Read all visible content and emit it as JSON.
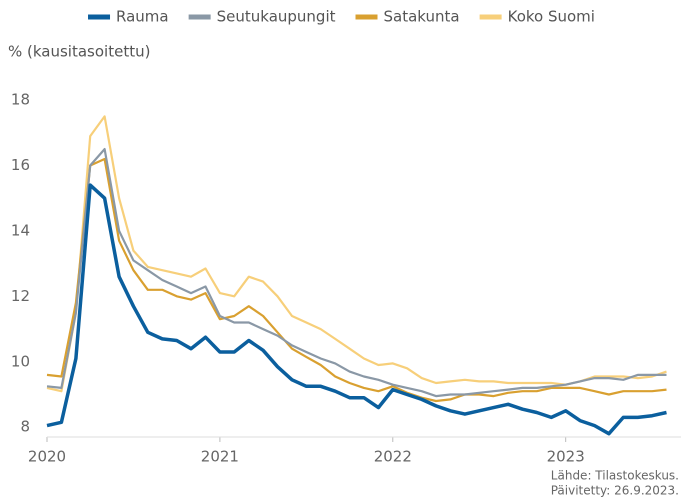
{
  "chart_data": {
    "type": "line",
    "y_axis_label": "% (kausitasoitettu)",
    "source_lines": [
      "Lähde: Tilastokeskus.",
      "Päivitetty: 26.9.2023."
    ],
    "legend": "top",
    "grid": false,
    "x": [
      2020,
      2020.083,
      2020.167,
      2020.25,
      2020.333,
      2020.417,
      2020.5,
      2020.583,
      2020.667,
      2020.75,
      2020.833,
      2020.917,
      2021,
      2021.083,
      2021.167,
      2021.25,
      2021.333,
      2021.417,
      2021.5,
      2021.583,
      2021.667,
      2021.75,
      2021.833,
      2021.917,
      2022,
      2022.083,
      2022.167,
      2022.25,
      2022.333,
      2022.417,
      2022.5,
      2022.583,
      2022.667,
      2022.75,
      2022.833,
      2022.917,
      2023,
      2023.083,
      2023.167,
      2023.25,
      2023.333,
      2023.417,
      2023.5,
      2023.583
    ],
    "xlim": [
      2020,
      2023.667
    ],
    "xticks": [
      2020,
      2021,
      2022,
      2023
    ],
    "ylim": [
      7.7,
      18.4
    ],
    "yticks": [
      8,
      10,
      12,
      14,
      16,
      18
    ],
    "series": [
      {
        "name": "Rauma",
        "color": "#0b5f9e",
        "values": [
          8.05,
          8.15,
          10.1,
          15.4,
          15.0,
          12.6,
          11.7,
          10.9,
          10.7,
          10.65,
          10.4,
          10.75,
          10.3,
          10.3,
          10.65,
          10.35,
          9.85,
          9.45,
          9.25,
          9.25,
          9.1,
          8.9,
          8.9,
          8.6,
          9.15,
          9.0,
          8.85,
          8.65,
          8.5,
          8.4,
          8.5,
          8.6,
          8.7,
          8.55,
          8.45,
          8.3,
          8.5,
          8.2,
          8.05,
          7.8,
          8.3,
          8.3,
          8.35,
          8.45
        ]
      },
      {
        "name": "Seutukaupungit",
        "color": "#8a98a6",
        "values": [
          9.25,
          9.2,
          11.5,
          16.0,
          16.5,
          14.0,
          13.1,
          12.8,
          12.5,
          12.3,
          12.1,
          12.3,
          11.4,
          11.2,
          11.2,
          11.0,
          10.8,
          10.5,
          10.3,
          10.1,
          9.95,
          9.7,
          9.55,
          9.45,
          9.3,
          9.2,
          9.1,
          8.95,
          9.0,
          9.0,
          9.05,
          9.1,
          9.15,
          9.2,
          9.2,
          9.25,
          9.3,
          9.4,
          9.5,
          9.5,
          9.45,
          9.6,
          9.6,
          9.6
        ]
      },
      {
        "name": "Satakunta",
        "color": "#d9a030",
        "values": [
          9.6,
          9.55,
          11.8,
          16.0,
          16.2,
          13.7,
          12.8,
          12.2,
          12.2,
          12.0,
          11.9,
          12.1,
          11.3,
          11.4,
          11.7,
          11.4,
          10.9,
          10.4,
          10.15,
          9.9,
          9.55,
          9.35,
          9.2,
          9.1,
          9.25,
          9.05,
          8.9,
          8.8,
          8.85,
          9.0,
          9.0,
          8.95,
          9.05,
          9.1,
          9.1,
          9.2,
          9.2,
          9.2,
          9.1,
          9.0,
          9.1,
          9.1,
          9.1,
          9.15
        ]
      },
      {
        "name": "Koko Suomi",
        "color": "#f7cf7a",
        "values": [
          9.2,
          9.1,
          11.5,
          16.9,
          17.5,
          15.0,
          13.4,
          12.9,
          12.8,
          12.7,
          12.6,
          12.85,
          12.1,
          12.0,
          12.6,
          12.45,
          12.0,
          11.4,
          11.2,
          11.0,
          10.7,
          10.4,
          10.1,
          9.9,
          9.95,
          9.8,
          9.5,
          9.35,
          9.4,
          9.45,
          9.4,
          9.4,
          9.35,
          9.35,
          9.35,
          9.35,
          9.3,
          9.4,
          9.55,
          9.55,
          9.55,
          9.5,
          9.55,
          9.7
        ]
      }
    ]
  }
}
